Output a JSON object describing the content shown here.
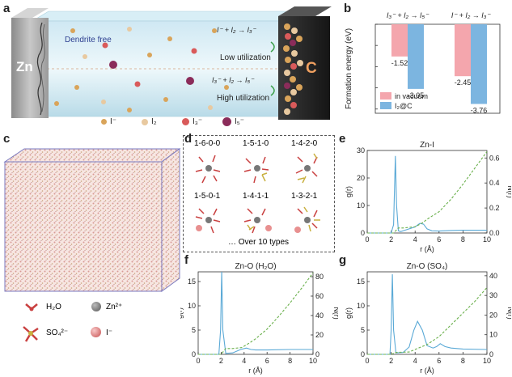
{
  "panel_labels": {
    "a": "a",
    "b": "b",
    "c": "c",
    "d": "d",
    "e": "e",
    "f": "f",
    "g": "g"
  },
  "panel_a": {
    "zn_label": "Zn",
    "c_label": "C",
    "dendrite_text": "Dendrite free",
    "reaction1": "I⁻ + I₂ → I₃⁻",
    "reaction2": "I₃⁻ + I₂ → I₅⁻",
    "low_text": "Low utilization",
    "high_text": "High utilization",
    "legend": [
      {
        "name": "I⁻",
        "color": "#d9a45a"
      },
      {
        "name": "I₂",
        "color": "#e8c9a0"
      },
      {
        "name": "I₃⁻",
        "color": "#d95a5a"
      },
      {
        "name": "I₅⁻",
        "color": "#8b2c5a"
      }
    ]
  },
  "panel_d": {
    "types": [
      "1-6-0-0",
      "1-5-1-0",
      "1-4-2-0",
      "1-5-0-1",
      "1-4-1-1",
      "1-3-2-1"
    ],
    "footer": "… Over 10 types"
  },
  "panel_c_legend": [
    {
      "name": "H₂O",
      "kind": "water"
    },
    {
      "name": "Zn²⁺",
      "kind": "zn"
    },
    {
      "name": "SO₄²⁻",
      "kind": "so4"
    },
    {
      "name": "I⁻",
      "kind": "iodide"
    }
  ],
  "chart_data": [
    {
      "id": "b",
      "type": "bar",
      "title_groups": [
        "I₃⁻ + I₂ → I₅⁻",
        "I⁻ + I₂ → I₃⁻"
      ],
      "ylabel": "Formation energy (eV)",
      "series": [
        {
          "name": "in vacuum",
          "color": "#f4a6ad",
          "values": [
            -1.52,
            -2.45
          ]
        },
        {
          "name": "I₂@C",
          "color": "#7cb5e0",
          "values": [
            -3.05,
            -3.76
          ]
        }
      ],
      "value_labels": [
        "-1.52",
        "-3.05",
        "-2.45",
        "-3.76"
      ],
      "ylim": [
        -4.2,
        0
      ]
    },
    {
      "id": "e",
      "type": "line",
      "title": "Zn-I",
      "xlabel": "r (Å)",
      "ylabel": "g(r)",
      "y2label": "N(r)",
      "xlim": [
        0,
        10
      ],
      "ylim": [
        0,
        30
      ],
      "y2lim": [
        0,
        0.66
      ],
      "xticks": [
        "0",
        "2",
        "4",
        "6",
        "8",
        "10"
      ],
      "yticks": [
        "0",
        "10",
        "20",
        "30"
      ],
      "y2ticks": [
        "0.0",
        "0.2",
        "0.4",
        "0.6"
      ],
      "series": [
        {
          "name": "g(r)",
          "color": "#5aa9d6",
          "x": [
            0,
            2.0,
            2.2,
            2.35,
            2.45,
            2.6,
            2.8,
            3.5,
            4.0,
            4.4,
            4.7,
            5.0,
            5.4,
            6.0,
            7,
            8,
            9,
            10
          ],
          "y": [
            0,
            0,
            3,
            28,
            10,
            0.8,
            0.5,
            1.5,
            2.2,
            3.5,
            3.2,
            1.5,
            0.8,
            0.7,
            0.9,
            1.0,
            1.0,
            1.0
          ]
        },
        {
          "name": "N(r)",
          "color": "#6ab04c",
          "dashed": true,
          "x": [
            0,
            2.2,
            2.6,
            3,
            4,
            4.6,
            5,
            6,
            7,
            8,
            9,
            10
          ],
          "y": [
            0,
            0,
            0.04,
            0.04,
            0.05,
            0.08,
            0.11,
            0.17,
            0.27,
            0.39,
            0.52,
            0.65
          ]
        }
      ]
    },
    {
      "id": "f",
      "type": "line",
      "title": "Zn-O (H₂O)",
      "xlabel": "r (Å)",
      "ylabel": "g(r)",
      "y2label": "N(r)",
      "xlim": [
        0,
        10
      ],
      "ylim": [
        0,
        17
      ],
      "y2lim": [
        0,
        85
      ],
      "xticks": [
        "0",
        "2",
        "4",
        "6",
        "8",
        "10"
      ],
      "yticks": [
        "0",
        "5",
        "10",
        "15"
      ],
      "y2ticks": [
        "0",
        "20",
        "40",
        "60",
        "80"
      ],
      "series": [
        {
          "name": "g(r)",
          "color": "#5aa9d6",
          "x": [
            0,
            1.8,
            1.95,
            2.05,
            2.15,
            2.4,
            3.0,
            3.7,
            4.2,
            4.6,
            5,
            6,
            8,
            10
          ],
          "y": [
            0,
            0,
            5,
            17,
            5,
            0.2,
            0.3,
            1.0,
            1.3,
            1.0,
            0.9,
            0.9,
            1.0,
            1.0
          ]
        },
        {
          "name": "N(r)",
          "color": "#6ab04c",
          "dashed": true,
          "x": [
            0,
            2,
            2.4,
            3,
            3.8,
            4.5,
            5,
            6,
            7,
            8,
            9,
            10
          ],
          "y": [
            0,
            0,
            6,
            6,
            7,
            12,
            16,
            26,
            39,
            53,
            68,
            84
          ]
        }
      ]
    },
    {
      "id": "g",
      "type": "line",
      "title": "Zn-O (SO₄)",
      "xlabel": "r (Å)",
      "ylabel": "g(r)",
      "y2label": "N(r)",
      "xlim": [
        0,
        10
      ],
      "ylim": [
        0,
        17
      ],
      "y2lim": [
        0,
        42
      ],
      "xticks": [
        "0",
        "2",
        "4",
        "6",
        "8",
        "10"
      ],
      "yticks": [
        "0",
        "5",
        "10",
        "15"
      ],
      "y2ticks": [
        "0",
        "10",
        "20",
        "30",
        "40"
      ],
      "series": [
        {
          "name": "g(r)",
          "color": "#5aa9d6",
          "x": [
            0,
            1.9,
            2.0,
            2.1,
            2.2,
            2.4,
            3.0,
            3.5,
            3.9,
            4.2,
            4.6,
            5.0,
            5.5,
            5.8,
            6.1,
            6.5,
            7,
            8,
            10
          ],
          "y": [
            0,
            0,
            5,
            16.5,
            5,
            0.3,
            0.4,
            1.5,
            5,
            6.8,
            5,
            1.8,
            1.3,
            1.6,
            2.2,
            1.6,
            1.3,
            1.1,
            1.0
          ]
        },
        {
          "name": "N(r)",
          "color": "#6ab04c",
          "dashed": true,
          "x": [
            0,
            2,
            2.4,
            3.5,
            4.2,
            5,
            6,
            7,
            8,
            9,
            10
          ],
          "y": [
            0,
            0,
            1,
            1.2,
            3,
            5,
            9,
            15,
            21,
            27,
            34
          ]
        }
      ]
    }
  ]
}
